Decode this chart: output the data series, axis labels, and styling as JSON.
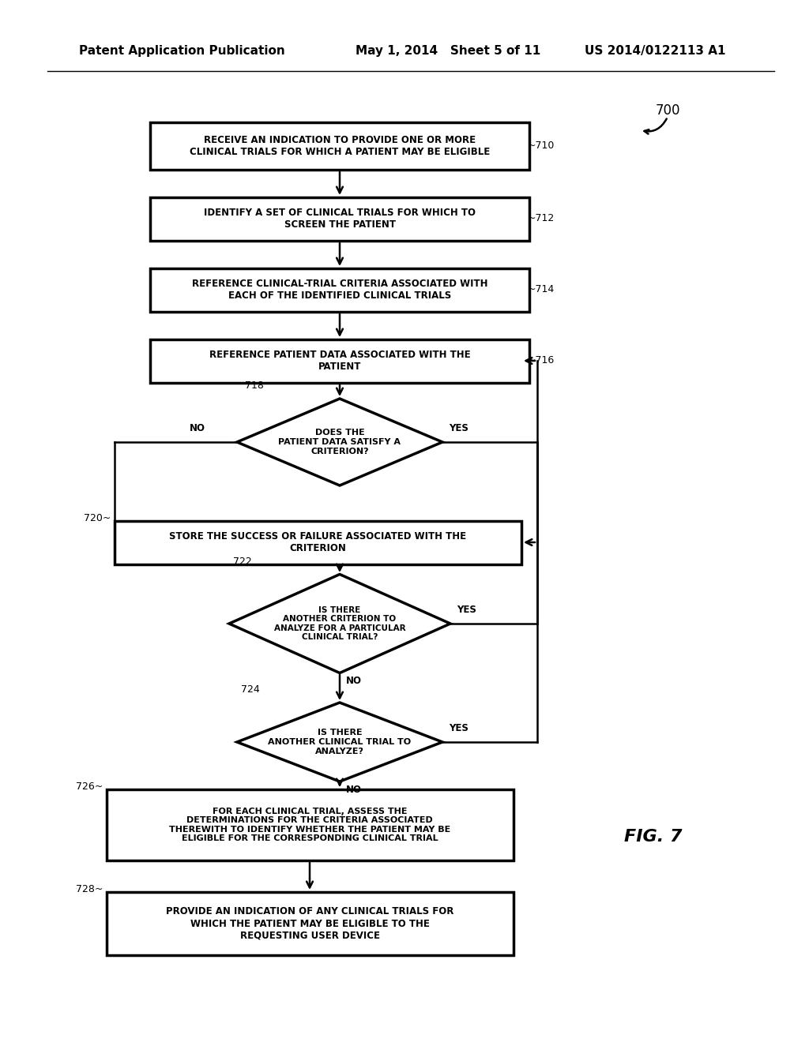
{
  "background_color": "#ffffff",
  "header_left": "Patent Application Publication",
  "header_mid": "May 1, 2014   Sheet 5 of 11",
  "header_right": "US 2014/0122113 A1",
  "fig_label": "FIG. 7",
  "fig_number": "700"
}
